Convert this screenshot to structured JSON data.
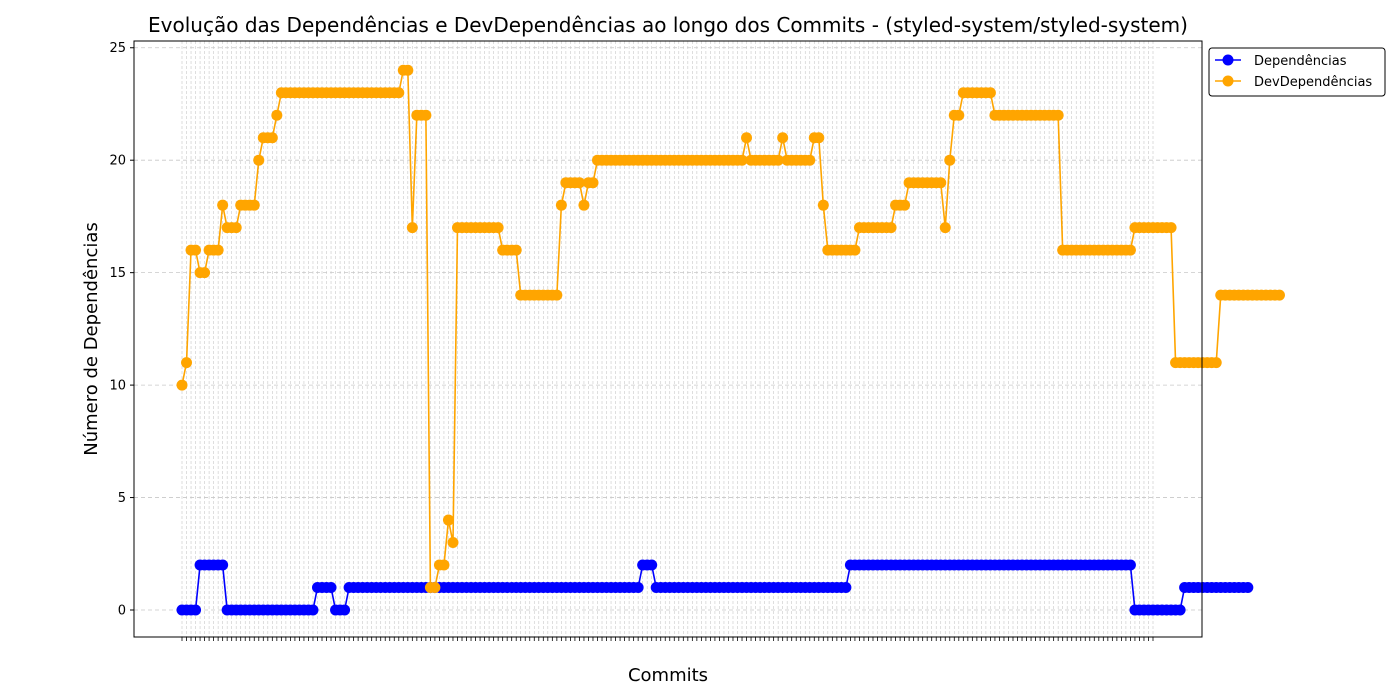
{
  "chart_data": {
    "type": "line",
    "title": "Evolução das Dependências e DevDependências ao longo dos Commits - (styled-system/styled-system)",
    "xlabel": "Commits",
    "ylabel": "Número de Dependências",
    "ylim": [
      -1.2,
      25.3
    ],
    "yticks": [
      0,
      5,
      10,
      15,
      20,
      25
    ],
    "grid": "dashed",
    "legend_position": "outside-top-right",
    "n_commits": 216,
    "series": [
      {
        "name": "Dependências",
        "color": "#0000ff",
        "values": [
          0,
          0,
          0,
          0,
          2,
          2,
          2,
          2,
          2,
          2,
          0,
          0,
          0,
          0,
          0,
          0,
          0,
          0,
          0,
          0,
          0,
          0,
          0,
          0,
          0,
          0,
          0,
          0,
          0,
          0,
          1,
          1,
          1,
          1,
          0,
          0,
          0,
          1,
          1,
          1,
          1,
          1,
          1,
          1,
          1,
          1,
          1,
          1,
          1,
          1,
          1,
          1,
          1,
          1,
          1,
          1,
          1,
          1,
          1,
          1,
          1,
          1,
          1,
          1,
          1,
          1,
          1,
          1,
          1,
          1,
          1,
          1,
          1,
          1,
          1,
          1,
          1,
          1,
          1,
          1,
          1,
          1,
          1,
          1,
          1,
          1,
          1,
          1,
          1,
          1,
          1,
          1,
          1,
          1,
          1,
          1,
          1,
          1,
          1,
          1,
          1,
          1,
          2,
          2,
          2,
          1,
          1,
          1,
          1,
          1,
          1,
          1,
          1,
          1,
          1,
          1,
          1,
          1,
          1,
          1,
          1,
          1,
          1,
          1,
          1,
          1,
          1,
          1,
          1,
          1,
          1,
          1,
          1,
          1,
          1,
          1,
          1,
          1,
          1,
          1,
          1,
          1,
          1,
          1,
          1,
          1,
          1,
          1,
          2,
          2,
          2,
          2,
          2,
          2,
          2,
          2,
          2,
          2,
          2,
          2,
          2,
          2,
          2,
          2,
          2,
          2,
          2,
          2,
          2,
          2,
          2,
          2,
          2,
          2,
          2,
          2,
          2,
          2,
          2,
          2,
          2,
          2,
          2,
          2,
          2,
          2,
          2,
          2,
          2,
          2,
          2,
          2,
          2,
          2,
          2,
          2,
          2,
          2,
          2,
          2,
          2,
          2,
          2,
          2,
          2,
          2,
          2,
          2,
          2,
          2,
          2,
          0,
          0,
          0,
          0,
          0,
          0,
          0,
          0,
          0,
          0,
          0,
          1,
          1,
          1,
          1,
          1,
          1,
          1,
          1,
          1,
          1,
          1,
          1,
          1,
          1,
          1
        ]
      },
      {
        "name": "DevDependências",
        "color": "#ffa500",
        "values": [
          10,
          11,
          16,
          16,
          15,
          15,
          16,
          16,
          16,
          18,
          17,
          17,
          17,
          18,
          18,
          18,
          18,
          20,
          21,
          21,
          21,
          22,
          23,
          23,
          23,
          23,
          23,
          23,
          23,
          23,
          23,
          23,
          23,
          23,
          23,
          23,
          23,
          23,
          23,
          23,
          23,
          23,
          23,
          23,
          23,
          23,
          23,
          23,
          23,
          24,
          24,
          17,
          22,
          22,
          22,
          1,
          1,
          2,
          2,
          4,
          3,
          17,
          17,
          17,
          17,
          17,
          17,
          17,
          17,
          17,
          17,
          16,
          16,
          16,
          16,
          14,
          14,
          14,
          14,
          14,
          14,
          14,
          14,
          14,
          18,
          19,
          19,
          19,
          19,
          18,
          19,
          19,
          20,
          20,
          20,
          20,
          20,
          20,
          20,
          20,
          20,
          20,
          20,
          20,
          20,
          20,
          20,
          20,
          20,
          20,
          20,
          20,
          20,
          20,
          20,
          20,
          20,
          20,
          20,
          20,
          20,
          20,
          20,
          20,
          20,
          21,
          20,
          20,
          20,
          20,
          20,
          20,
          20,
          21,
          20,
          20,
          20,
          20,
          20,
          20,
          21,
          21,
          18,
          16,
          16,
          16,
          16,
          16,
          16,
          16,
          17,
          17,
          17,
          17,
          17,
          17,
          17,
          17,
          18,
          18,
          18,
          19,
          19,
          19,
          19,
          19,
          19,
          19,
          19,
          17,
          20,
          22,
          22,
          23,
          23,
          23,
          23,
          23,
          23,
          23,
          22,
          22,
          22,
          22,
          22,
          22,
          22,
          22,
          22,
          22,
          22,
          22,
          22,
          22,
          22,
          16,
          16,
          16,
          16,
          16,
          16,
          16,
          16,
          16,
          16,
          16,
          16,
          16,
          16,
          16,
          16,
          17,
          17,
          17,
          17,
          17,
          17,
          17,
          17,
          17,
          11,
          11,
          11,
          11,
          11,
          11,
          11,
          11,
          11,
          11,
          14,
          14,
          14,
          14,
          14,
          14,
          14,
          14,
          14,
          14,
          14,
          14,
          14,
          14
        ]
      }
    ]
  }
}
